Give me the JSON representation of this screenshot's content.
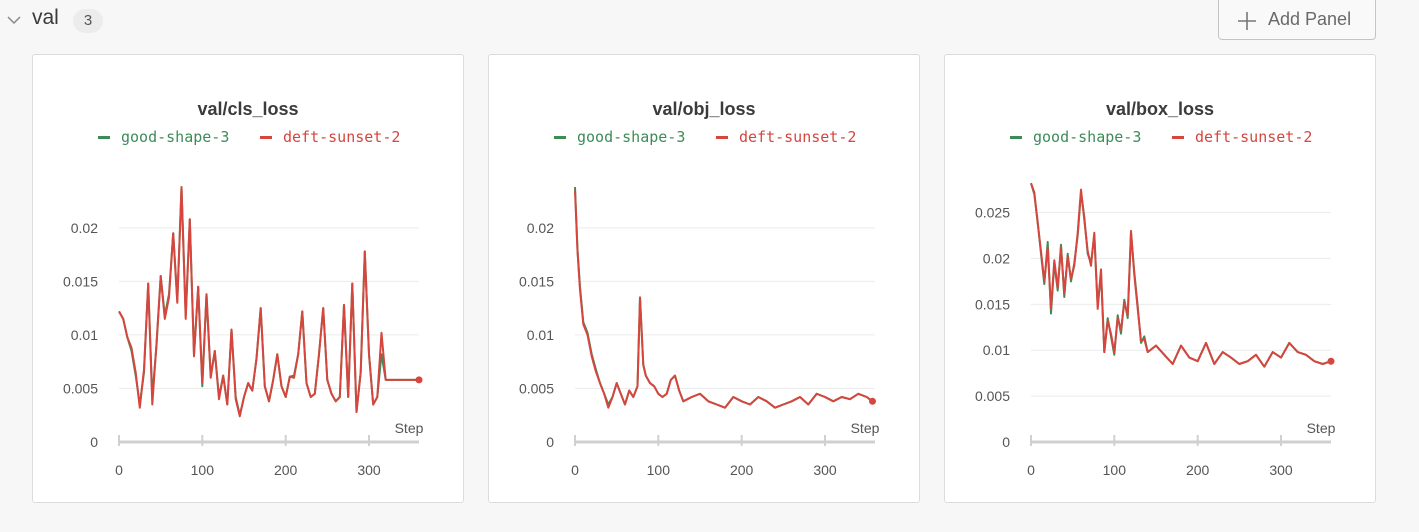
{
  "section": {
    "title": "val",
    "count": "3",
    "add_panel_label": "Add Panel"
  },
  "colors": {
    "series_1": "#3d8c58",
    "series_2": "#d6463f",
    "grid": "#ececec",
    "axis": "#d0d0d0"
  },
  "chart_data": [
    {
      "type": "line",
      "title": "val/cls_loss",
      "xlabel": "Step",
      "ylabel": "",
      "xlim": [
        0,
        360
      ],
      "ylim": [
        0,
        0.024
      ],
      "x_ticks": [
        "0",
        "100",
        "200",
        "300"
      ],
      "x_tick_values": [
        0,
        100,
        200,
        300
      ],
      "y_ticks": [
        "0",
        "0.005",
        "0.01",
        "0.015",
        "0.02"
      ],
      "y_tick_values": [
        0,
        0.005,
        0.01,
        0.015,
        0.02
      ],
      "legend": "top",
      "series": [
        {
          "name": "good-shape-3",
          "x": [
            0,
            5,
            10,
            15,
            20,
            25,
            30,
            35,
            40,
            45,
            50,
            55,
            60,
            65,
            70,
            75,
            80,
            85,
            90,
            95,
            100,
            105,
            110,
            115,
            120,
            125,
            130,
            135,
            140,
            145,
            150,
            155,
            160,
            165,
            170,
            175,
            180,
            185,
            190,
            195,
            200,
            205,
            210,
            215,
            220,
            225,
            230,
            235,
            240,
            245,
            250,
            255,
            260,
            265,
            270,
            275,
            280,
            285,
            290,
            295,
            300,
            305,
            310,
            315,
            320,
            325,
            330,
            335,
            340,
            345,
            350,
            355,
            360
          ],
          "y": [
            0.0122,
            0.0115,
            0.0098,
            0.0085,
            0.0062,
            0.0035,
            0.0065,
            0.0148,
            0.0042,
            0.009,
            0.0155,
            0.0118,
            0.0138,
            0.0195,
            0.0132,
            0.0238,
            0.0118,
            0.0208,
            0.0082,
            0.0145,
            0.0052,
            0.0138,
            0.0062,
            0.0085,
            0.0042,
            0.0062,
            0.0035,
            0.0105,
            0.0042,
            0.0025,
            0.0042,
            0.0055,
            0.0048,
            0.0078,
            0.0125,
            0.0052,
            0.0038,
            0.0058,
            0.0082,
            0.0052,
            0.0042,
            0.0061,
            0.0062,
            0.0082,
            0.0122,
            0.0055,
            0.0042,
            0.0045,
            0.0082,
            0.0125,
            0.0058,
            0.0045,
            0.0038,
            0.0042,
            0.0128,
            0.0042,
            0.0148,
            0.0028,
            0.0065,
            0.0178,
            0.0082,
            0.0035,
            0.0042,
            0.0082,
            0.0058,
            0.0058,
            0.0058,
            0.0058,
            0.0058,
            0.0058,
            0.0058,
            0.0058,
            0.0058
          ]
        },
        {
          "name": "deft-sunset-2",
          "x": [
            0,
            5,
            10,
            15,
            20,
            25,
            30,
            35,
            40,
            45,
            50,
            55,
            60,
            65,
            70,
            75,
            80,
            85,
            90,
            95,
            100,
            105,
            110,
            115,
            120,
            125,
            130,
            135,
            140,
            145,
            150,
            155,
            160,
            165,
            170,
            175,
            180,
            185,
            190,
            195,
            200,
            205,
            210,
            215,
            220,
            225,
            230,
            235,
            240,
            245,
            250,
            255,
            260,
            265,
            270,
            275,
            280,
            285,
            290,
            295,
            300,
            305,
            310,
            315,
            320,
            325,
            330,
            335,
            340,
            345,
            350,
            355,
            360
          ],
          "y": [
            0.0122,
            0.0115,
            0.0098,
            0.0088,
            0.0065,
            0.0032,
            0.0068,
            0.0148,
            0.0035,
            0.0092,
            0.0155,
            0.0115,
            0.0135,
            0.0195,
            0.013,
            0.0238,
            0.0115,
            0.0208,
            0.008,
            0.0145,
            0.0055,
            0.0138,
            0.006,
            0.0085,
            0.004,
            0.0062,
            0.0035,
            0.0105,
            0.004,
            0.0024,
            0.0042,
            0.0055,
            0.0048,
            0.0078,
            0.0125,
            0.0052,
            0.0038,
            0.0058,
            0.0082,
            0.0052,
            0.0042,
            0.0061,
            0.006,
            0.0082,
            0.0122,
            0.0055,
            0.0042,
            0.0045,
            0.0082,
            0.0125,
            0.0058,
            0.0045,
            0.0038,
            0.0042,
            0.0128,
            0.0042,
            0.0148,
            0.0028,
            0.0065,
            0.0178,
            0.0082,
            0.0035,
            0.0042,
            0.0102,
            0.0058,
            0.0058,
            0.0058,
            0.0058,
            0.0058,
            0.0058,
            0.0058,
            0.0058,
            0.0058
          ]
        }
      ]
    },
    {
      "type": "line",
      "title": "val/obj_loss",
      "xlabel": "Step",
      "ylabel": "",
      "xlim": [
        0,
        360
      ],
      "ylim": [
        0,
        0.024
      ],
      "x_ticks": [
        "0",
        "100",
        "200",
        "300"
      ],
      "x_tick_values": [
        0,
        100,
        200,
        300
      ],
      "y_ticks": [
        "0",
        "0.005",
        "0.01",
        "0.015",
        "0.02"
      ],
      "y_tick_values": [
        0,
        0.005,
        0.01,
        0.015,
        0.02
      ],
      "legend": "top",
      "series": [
        {
          "name": "good-shape-3",
          "x": [
            0,
            3,
            6,
            10,
            15,
            20,
            25,
            30,
            35,
            40,
            45,
            50,
            55,
            60,
            65,
            70,
            75,
            78,
            82,
            85,
            90,
            95,
            100,
            105,
            110,
            115,
            120,
            125,
            130,
            140,
            150,
            160,
            170,
            180,
            190,
            200,
            210,
            220,
            230,
            240,
            250,
            260,
            270,
            280,
            290,
            300,
            310,
            320,
            330,
            340,
            350,
            357
          ],
          "y": [
            0.0238,
            0.018,
            0.0145,
            0.0112,
            0.0102,
            0.0082,
            0.0068,
            0.0055,
            0.0045,
            0.0035,
            0.0042,
            0.0055,
            0.0045,
            0.0035,
            0.0048,
            0.0042,
            0.0052,
            0.0135,
            0.0072,
            0.0062,
            0.0055,
            0.0052,
            0.0045,
            0.0042,
            0.0045,
            0.0058,
            0.0062,
            0.0048,
            0.0038,
            0.0042,
            0.0045,
            0.0038,
            0.0035,
            0.0032,
            0.0042,
            0.0038,
            0.0035,
            0.0042,
            0.0038,
            0.0032,
            0.0035,
            0.0038,
            0.0042,
            0.0035,
            0.0045,
            0.0042,
            0.0038,
            0.0042,
            0.004,
            0.0045,
            0.0042,
            0.0038
          ]
        },
        {
          "name": "deft-sunset-2",
          "x": [
            0,
            3,
            6,
            10,
            15,
            20,
            25,
            30,
            35,
            40,
            45,
            50,
            55,
            60,
            65,
            70,
            75,
            78,
            82,
            85,
            90,
            95,
            100,
            105,
            110,
            115,
            120,
            125,
            130,
            140,
            150,
            160,
            170,
            180,
            190,
            200,
            210,
            220,
            230,
            240,
            250,
            260,
            270,
            280,
            290,
            300,
            310,
            320,
            330,
            340,
            350,
            357
          ],
          "y": [
            0.0235,
            0.0178,
            0.0142,
            0.011,
            0.01,
            0.008,
            0.0066,
            0.0055,
            0.0045,
            0.0032,
            0.0042,
            0.0055,
            0.0045,
            0.0035,
            0.0048,
            0.0042,
            0.0052,
            0.0135,
            0.0072,
            0.0062,
            0.0055,
            0.0052,
            0.0045,
            0.0042,
            0.0045,
            0.0058,
            0.0062,
            0.0048,
            0.0038,
            0.0042,
            0.0045,
            0.0038,
            0.0035,
            0.0032,
            0.0042,
            0.0038,
            0.0035,
            0.0042,
            0.0038,
            0.0032,
            0.0035,
            0.0038,
            0.0042,
            0.0035,
            0.0045,
            0.0042,
            0.0038,
            0.0042,
            0.004,
            0.0045,
            0.0042,
            0.0038
          ]
        }
      ]
    },
    {
      "type": "line",
      "title": "val/box_loss",
      "xlabel": "Step",
      "ylabel": "",
      "xlim": [
        0,
        360
      ],
      "ylim": [
        0,
        0.028
      ],
      "x_ticks": [
        "0",
        "100",
        "200",
        "300"
      ],
      "x_tick_values": [
        0,
        100,
        200,
        300
      ],
      "y_ticks": [
        "0",
        "0.005",
        "0.01",
        "0.015",
        "0.02",
        "0.025"
      ],
      "y_tick_values": [
        0,
        0.005,
        0.01,
        0.015,
        0.02,
        0.025
      ],
      "legend": "top",
      "series": [
        {
          "name": "good-shape-3",
          "x": [
            0,
            4,
            8,
            12,
            16,
            20,
            24,
            28,
            32,
            36,
            40,
            44,
            48,
            52,
            56,
            60,
            64,
            68,
            72,
            76,
            80,
            84,
            88,
            92,
            96,
            100,
            104,
            108,
            112,
            116,
            120,
            124,
            128,
            132,
            136,
            140,
            150,
            160,
            170,
            180,
            190,
            200,
            210,
            220,
            230,
            240,
            250,
            260,
            270,
            280,
            290,
            300,
            310,
            320,
            330,
            340,
            350,
            360
          ],
          "y": [
            0.0282,
            0.027,
            0.024,
            0.0205,
            0.0172,
            0.0218,
            0.014,
            0.0195,
            0.0165,
            0.0215,
            0.0158,
            0.0205,
            0.0175,
            0.0195,
            0.0225,
            0.0272,
            0.0245,
            0.0205,
            0.0195,
            0.0225,
            0.0148,
            0.0185,
            0.0098,
            0.0135,
            0.0115,
            0.0095,
            0.0138,
            0.0118,
            0.0155,
            0.0135,
            0.0228,
            0.0185,
            0.0148,
            0.0108,
            0.0115,
            0.0098,
            0.0105,
            0.0095,
            0.0085,
            0.0105,
            0.0092,
            0.0088,
            0.0108,
            0.0085,
            0.0098,
            0.0092,
            0.0085,
            0.0088,
            0.0095,
            0.0082,
            0.0098,
            0.0092,
            0.0108,
            0.0098,
            0.0095,
            0.0088,
            0.0085,
            0.0088
          ]
        },
        {
          "name": "deft-sunset-2",
          "x": [
            0,
            4,
            8,
            12,
            16,
            20,
            24,
            28,
            32,
            36,
            40,
            44,
            48,
            52,
            56,
            60,
            64,
            68,
            72,
            76,
            80,
            84,
            88,
            92,
            96,
            100,
            104,
            108,
            112,
            116,
            120,
            124,
            128,
            132,
            136,
            140,
            150,
            160,
            170,
            180,
            190,
            200,
            210,
            220,
            230,
            240,
            250,
            260,
            270,
            280,
            290,
            300,
            310,
            320,
            330,
            340,
            350,
            360
          ],
          "y": [
            0.0282,
            0.0272,
            0.0238,
            0.0208,
            0.0175,
            0.0212,
            0.0145,
            0.0198,
            0.0168,
            0.0212,
            0.0162,
            0.0202,
            0.0178,
            0.0192,
            0.0228,
            0.0275,
            0.0242,
            0.0208,
            0.0192,
            0.0228,
            0.0145,
            0.0188,
            0.0098,
            0.0132,
            0.0118,
            0.0098,
            0.0135,
            0.0122,
            0.0152,
            0.0138,
            0.023,
            0.0182,
            0.0145,
            0.011,
            0.0112,
            0.0098,
            0.0105,
            0.0095,
            0.0085,
            0.0105,
            0.0092,
            0.0088,
            0.0108,
            0.0085,
            0.0098,
            0.0092,
            0.0085,
            0.0088,
            0.0095,
            0.0082,
            0.0098,
            0.0092,
            0.0108,
            0.0098,
            0.0095,
            0.0088,
            0.0085,
            0.0088
          ]
        }
      ]
    }
  ]
}
